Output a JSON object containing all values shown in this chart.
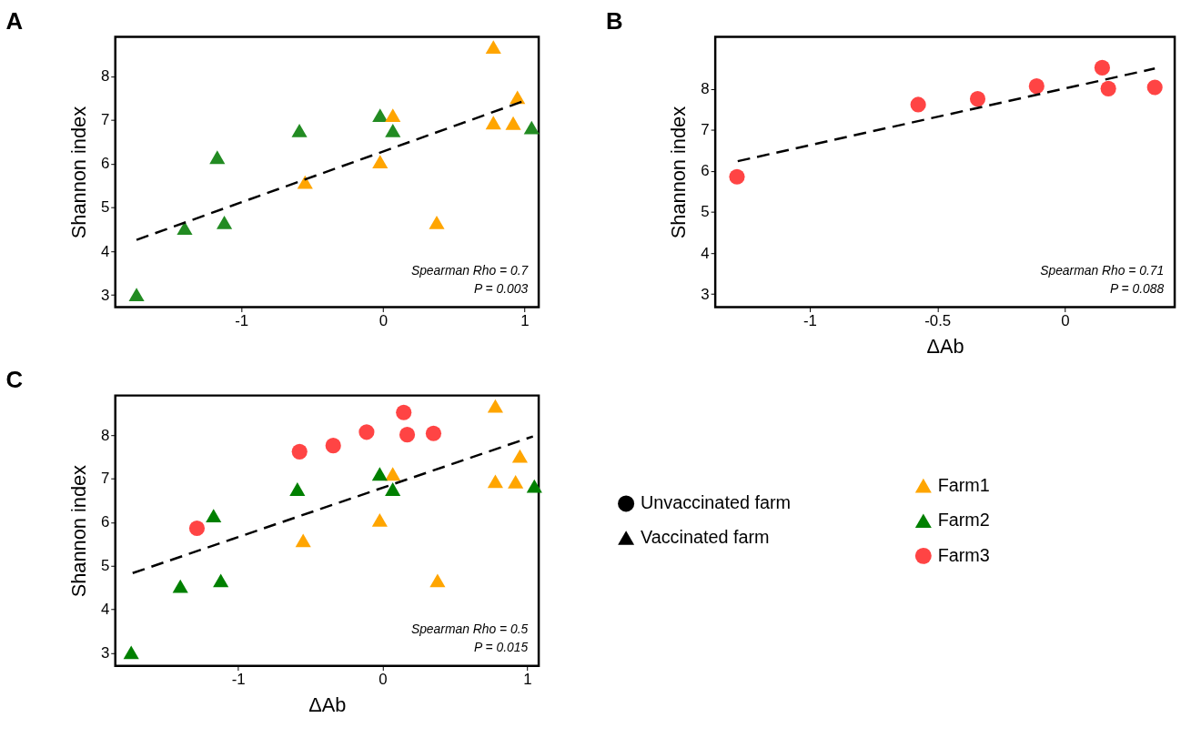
{
  "chart_data": [
    {
      "type": "scatter",
      "title": "A",
      "ylabel": "Shannon index",
      "marker": "triangle",
      "xlim": [
        -1.89,
        1.1
      ],
      "ylim": [
        2.72,
        8.9
      ],
      "xticks": [
        -1,
        0,
        1
      ],
      "yticks": [
        3,
        4,
        5,
        6,
        7,
        8
      ],
      "grid": false,
      "annotations": [
        "Spearman Rho = 0.7",
        "P = 0.003"
      ],
      "series": [
        {
          "color": "#228b22",
          "x": [
            -1.74,
            -1.4,
            -1.12,
            -1.17,
            -0.59,
            -0.02,
            0.07,
            1.05
          ],
          "values": [
            3.01,
            4.53,
            4.66,
            6.15,
            6.76,
            7.11,
            6.76,
            6.83
          ]
        },
        {
          "color": "#ffa500",
          "x": [
            0.78,
            0.95,
            0.78,
            0.92,
            0.07,
            -0.02,
            -0.55,
            0.38
          ],
          "values": [
            8.67,
            7.52,
            6.94,
            6.93,
            7.11,
            6.05,
            5.58,
            4.66
          ]
        },
        {
          "type": "line",
          "color": "#000000",
          "line_style": "dashed",
          "marker": "none",
          "x": [
            -1.74,
            1.0
          ],
          "values": [
            4.26,
            7.44
          ]
        }
      ]
    },
    {
      "type": "scatter",
      "title": "B",
      "ylabel": "Shannon index",
      "xlabel": "ΔAb",
      "marker": "circle",
      "xlim": [
        -1.37,
        0.43
      ],
      "ylim": [
        2.68,
        9.27
      ],
      "xticks": [
        -1,
        -0.5,
        0
      ],
      "yticks": [
        3,
        4,
        5,
        6,
        7,
        8
      ],
      "grid": false,
      "annotations": [
        "Spearman Rho = 0.71",
        "P = 0.088"
      ],
      "series": [
        {
          "color": "#ff4444",
          "x": [
            -1.285,
            -0.575,
            -0.342,
            -0.111,
            0.146,
            0.17,
            0.352
          ],
          "values": [
            5.86,
            7.62,
            7.76,
            8.07,
            8.52,
            8.01,
            8.04
          ]
        },
        {
          "type": "line",
          "color": "#000000",
          "line_style": "dashed",
          "marker": "none",
          "x": [
            -1.282,
            0.352
          ],
          "values": [
            6.24,
            8.5
          ]
        }
      ]
    },
    {
      "type": "scatter",
      "title": "C",
      "ylabel": "Shannon index",
      "xlabel": "ΔAb",
      "xlim": [
        -1.85,
        1.08
      ],
      "ylim": [
        2.7,
        8.91
      ],
      "xticks": [
        -1,
        0,
        1
      ],
      "yticks": [
        3,
        4,
        5,
        6,
        7,
        8
      ],
      "grid": false,
      "legend": "right",
      "annotations": [
        "Spearman Rho = 0.5",
        "P = 0.015"
      ],
      "series": [
        {
          "name": "Farm1",
          "color": "#ffa500",
          "marker": "triangle",
          "x": [
            0.78,
            0.95,
            0.78,
            0.92,
            0.07,
            -0.02,
            -0.55,
            0.38
          ],
          "values": [
            8.67,
            7.52,
            6.94,
            6.93,
            7.11,
            6.05,
            5.58,
            4.66
          ]
        },
        {
          "name": "Farm2",
          "color": "#008000",
          "marker": "triangle",
          "x": [
            -1.74,
            -1.4,
            -1.12,
            -1.17,
            -0.59,
            -0.02,
            0.07,
            1.05
          ],
          "values": [
            3.01,
            4.53,
            4.66,
            6.15,
            6.76,
            7.11,
            6.76,
            6.83
          ]
        },
        {
          "name": "Farm3",
          "color": "#ff4444",
          "marker": "circle",
          "x": [
            -1.285,
            -0.575,
            -0.342,
            -0.111,
            0.146,
            0.17,
            0.352
          ],
          "values": [
            5.86,
            7.62,
            7.76,
            8.07,
            8.52,
            8.01,
            8.04
          ]
        },
        {
          "type": "line",
          "color": "#000000",
          "line_style": "dashed",
          "marker": "none",
          "x": [
            -1.73,
            1.04
          ],
          "values": [
            4.83,
            7.97
          ]
        }
      ]
    },
    {
      "type": "other",
      "legend": "left",
      "series": [
        {
          "name": "Unvaccinated farm",
          "color": "#000000",
          "marker": "circle"
        },
        {
          "name": "Vaccinated farm",
          "color": "#000000",
          "marker": "triangle"
        }
      ]
    }
  ]
}
